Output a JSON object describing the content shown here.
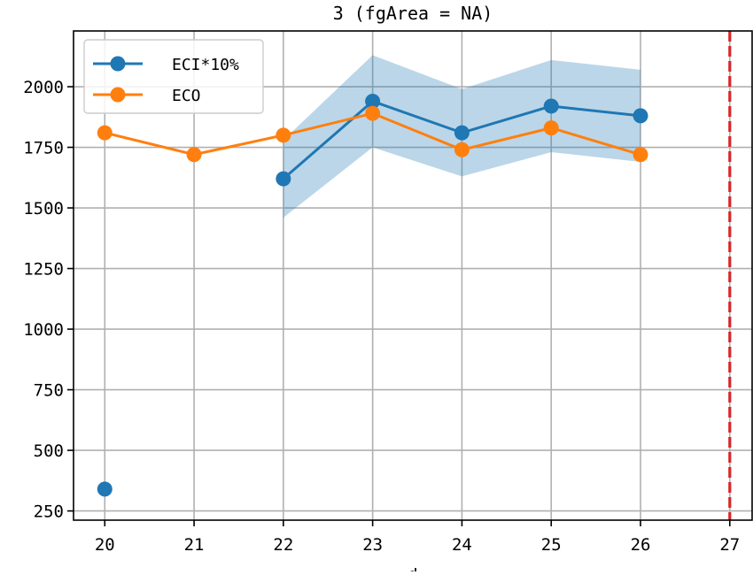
{
  "chart_data": {
    "type": "line",
    "title": "3 (fgArea = NA)",
    "xlabel": "d",
    "ylabel": "",
    "xlim": [
      19.65,
      27.25
    ],
    "ylim": [
      212,
      2230
    ],
    "xticks": [
      20,
      21,
      22,
      23,
      24,
      25,
      26,
      27
    ],
    "yticks": [
      250,
      500,
      750,
      1000,
      1250,
      1500,
      1750,
      2000
    ],
    "grid": true,
    "legend_position": "upper-left",
    "vline": {
      "x": 27,
      "color": "#d62728",
      "style": "dashed"
    },
    "series": [
      {
        "name": "ECI*10%",
        "color": "#1f77b4",
        "points": [
          {
            "x": 20,
            "y": 340
          },
          {
            "x": 22,
            "y": 1620
          },
          {
            "x": 23,
            "y": 1940
          },
          {
            "x": 24,
            "y": 1810
          },
          {
            "x": 25,
            "y": 1920
          },
          {
            "x": 26,
            "y": 1880
          }
        ],
        "band": [
          {
            "x": 22,
            "lo": 1460,
            "hi": 1780
          },
          {
            "x": 23,
            "lo": 1750,
            "hi": 2130
          },
          {
            "x": 24,
            "lo": 1630,
            "hi": 1990
          },
          {
            "x": 25,
            "lo": 1730,
            "hi": 2110
          },
          {
            "x": 26,
            "lo": 1690,
            "hi": 2070
          }
        ]
      },
      {
        "name": "ECO",
        "color": "#ff7f0e",
        "points": [
          {
            "x": 20,
            "y": 1810
          },
          {
            "x": 21,
            "y": 1720
          },
          {
            "x": 22,
            "y": 1800
          },
          {
            "x": 23,
            "y": 1890
          },
          {
            "x": 24,
            "y": 1740
          },
          {
            "x": 25,
            "y": 1830
          },
          {
            "x": 26,
            "y": 1720
          }
        ]
      }
    ]
  }
}
